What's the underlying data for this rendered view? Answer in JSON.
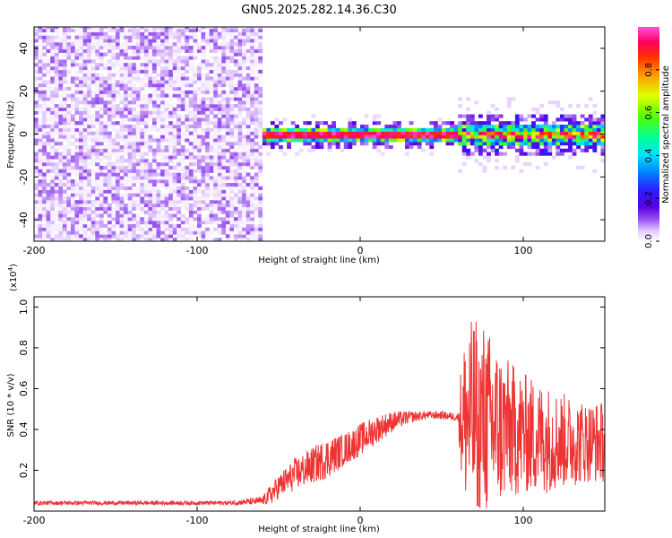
{
  "title": "GN05.2025.282.14.36.C30",
  "chart_data": [
    {
      "type": "heatmap",
      "id": "spectrogram",
      "xlabel": "Height of straight line (km)",
      "ylabel": "Frequency (Hz)",
      "xlim": [
        -200,
        150
      ],
      "ylim": [
        -50,
        50
      ],
      "xticks": [
        -200,
        -100,
        0,
        100
      ],
      "xtick_labels": [
        "-200",
        "-100",
        "0",
        "100"
      ],
      "yticks": [
        -40,
        -20,
        0,
        20,
        40
      ],
      "ytick_labels": [
        "-40",
        "-20",
        "0",
        "20",
        "40"
      ],
      "colorbar": {
        "label": "Normalized spectral amplitude",
        "range": [
          0,
          1
        ],
        "ticks": [
          0.0,
          0.2,
          0.4,
          0.6,
          0.8
        ],
        "tick_labels": [
          "0.0",
          "0.2",
          "0.4",
          "0.6",
          "0.8"
        ],
        "colors": [
          "#ffffff",
          "#e2c8ff",
          "#9a55f0",
          "#5a00e0",
          "#2a1fff",
          "#0080ff",
          "#00e0ff",
          "#00ff9a",
          "#50ff00",
          "#e0ff00",
          "#ffa000",
          "#ff3000",
          "#ff0060",
          "#ff50e0"
        ]
      },
      "regions": [
        {
          "x_range": [
            -200,
            -60
          ],
          "description": "broadband noise",
          "level": 0.12
        },
        {
          "x_range": [
            -60,
            60
          ],
          "description": "narrow band near 0 Hz",
          "freq_center": 0,
          "peak_level": 1.0
        },
        {
          "x_range": [
            60,
            150
          ],
          "description": "broadened band near 0 Hz",
          "freq_center": 0,
          "peak_level": 0.85
        }
      ]
    },
    {
      "type": "line",
      "id": "snr",
      "xlabel": "Height of straight line (km)",
      "ylabel": "SNR (10 * v/v)",
      "scale_label": "(x10",
      "scale_exp": "4",
      "scale_suffix": ")",
      "xlim": [
        -200,
        150
      ],
      "ylim": [
        0,
        1.05
      ],
      "xticks": [
        -200,
        -100,
        0,
        100
      ],
      "xtick_labels": [
        "-200",
        "-100",
        "0",
        "100"
      ],
      "yticks": [
        0.2,
        0.4,
        0.6,
        0.8,
        1.0
      ],
      "ytick_labels": [
        "0.2",
        "0.4",
        "0.6",
        "0.8",
        "1.0"
      ],
      "color": "#ee3333",
      "series": [
        {
          "name": "SNR",
          "x": [
            -200,
            -180,
            -160,
            -140,
            -120,
            -100,
            -80,
            -60,
            -55,
            -50,
            -40,
            -30,
            -20,
            -10,
            0,
            10,
            20,
            30,
            40,
            50,
            60,
            62,
            65,
            70,
            75,
            80,
            90,
            100,
            110,
            120,
            130,
            140,
            150
          ],
          "mean": [
            0.04,
            0.04,
            0.04,
            0.04,
            0.04,
            0.04,
            0.04,
            0.05,
            0.08,
            0.12,
            0.18,
            0.22,
            0.26,
            0.3,
            0.35,
            0.4,
            0.44,
            0.46,
            0.47,
            0.47,
            0.46,
            0.45,
            0.46,
            0.45,
            0.44,
            0.42,
            0.4,
            0.38,
            0.36,
            0.35,
            0.34,
            0.34,
            0.34
          ],
          "spread": [
            0.01,
            0.01,
            0.01,
            0.01,
            0.01,
            0.01,
            0.01,
            0.02,
            0.05,
            0.06,
            0.08,
            0.09,
            0.1,
            0.08,
            0.08,
            0.07,
            0.05,
            0.03,
            0.02,
            0.02,
            0.02,
            0.3,
            0.45,
            0.5,
            0.5,
            0.45,
            0.35,
            0.3,
            0.28,
            0.25,
            0.22,
            0.2,
            0.2
          ]
        }
      ]
    }
  ]
}
